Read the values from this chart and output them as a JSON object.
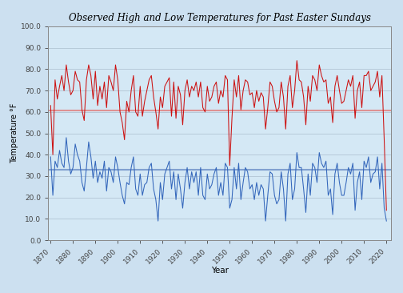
{
  "title": "Observed High and Low Temperatures for Past Easter Sundays",
  "xlabel": "Year",
  "ylabel": "Temperature °F",
  "bg_color": "#cce0f0",
  "plot_bg_color": "#d4e8f5",
  "grid_color": "#aabccc",
  "high_color": "#cc1111",
  "low_color": "#3366bb",
  "avg_high_color": "#e08888",
  "avg_low_color": "#7799cc",
  "xlim": [
    1869,
    2022
  ],
  "ylim": [
    0.0,
    100.0
  ],
  "yticks": [
    0,
    10,
    20,
    30,
    40,
    50,
    60,
    70,
    80,
    90,
    100
  ],
  "xticks": [
    1870,
    1880,
    1890,
    1900,
    1910,
    1920,
    1930,
    1940,
    1950,
    1960,
    1970,
    1980,
    1990,
    2000,
    2010,
    2020
  ],
  "years": [
    1870,
    1871,
    1872,
    1873,
    1874,
    1875,
    1876,
    1877,
    1878,
    1879,
    1880,
    1881,
    1882,
    1883,
    1884,
    1885,
    1886,
    1887,
    1888,
    1889,
    1890,
    1891,
    1892,
    1893,
    1894,
    1895,
    1896,
    1897,
    1898,
    1899,
    1900,
    1901,
    1902,
    1903,
    1904,
    1905,
    1906,
    1907,
    1908,
    1909,
    1910,
    1911,
    1912,
    1913,
    1914,
    1915,
    1916,
    1917,
    1918,
    1919,
    1920,
    1921,
    1922,
    1923,
    1924,
    1925,
    1926,
    1927,
    1928,
    1929,
    1930,
    1931,
    1932,
    1933,
    1934,
    1935,
    1936,
    1937,
    1938,
    1939,
    1940,
    1941,
    1942,
    1943,
    1944,
    1945,
    1946,
    1947,
    1948,
    1949,
    1950,
    1951,
    1952,
    1953,
    1954,
    1955,
    1956,
    1957,
    1958,
    1959,
    1960,
    1961,
    1962,
    1963,
    1964,
    1965,
    1966,
    1967,
    1968,
    1969,
    1970,
    1971,
    1972,
    1973,
    1974,
    1975,
    1976,
    1977,
    1978,
    1979,
    1980,
    1981,
    1982,
    1983,
    1984,
    1985,
    1986,
    1987,
    1988,
    1989,
    1990,
    1991,
    1992,
    1993,
    1994,
    1995,
    1996,
    1997,
    1998,
    1999,
    2000,
    2001,
    2002,
    2003,
    2004,
    2005,
    2006,
    2007,
    2008,
    2009,
    2010,
    2011,
    2012,
    2013,
    2014,
    2015,
    2016,
    2017,
    2018,
    2019,
    2020
  ],
  "highs": [
    63,
    40,
    75,
    66,
    72,
    77,
    70,
    82,
    74,
    68,
    70,
    79,
    75,
    74,
    61,
    56,
    75,
    82,
    77,
    66,
    79,
    63,
    72,
    66,
    74,
    62,
    77,
    74,
    70,
    82,
    75,
    60,
    55,
    47,
    65,
    60,
    70,
    77,
    60,
    58,
    72,
    58,
    65,
    70,
    75,
    77,
    67,
    60,
    52,
    67,
    62,
    72,
    74,
    76,
    58,
    74,
    57,
    72,
    68,
    54,
    70,
    75,
    67,
    72,
    70,
    74,
    67,
    74,
    62,
    60,
    72,
    65,
    67,
    72,
    74,
    64,
    70,
    67,
    77,
    75,
    35,
    57,
    75,
    67,
    77,
    61,
    70,
    75,
    74,
    68,
    69,
    62,
    70,
    65,
    69,
    67,
    52,
    62,
    74,
    72,
    65,
    60,
    62,
    74,
    67,
    52,
    72,
    77,
    62,
    70,
    84,
    75,
    74,
    67,
    54,
    72,
    65,
    77,
    75,
    70,
    82,
    77,
    74,
    75,
    64,
    67,
    55,
    72,
    77,
    70,
    64,
    65,
    70,
    75,
    72,
    77,
    57,
    70,
    74,
    62,
    77,
    77,
    79,
    70,
    72,
    74,
    79,
    67,
    77,
    47,
    14
  ],
  "lows": [
    39,
    21,
    37,
    34,
    42,
    36,
    34,
    48,
    37,
    31,
    34,
    45,
    40,
    37,
    27,
    23,
    34,
    46,
    39,
    29,
    37,
    27,
    32,
    29,
    37,
    23,
    34,
    32,
    27,
    39,
    34,
    27,
    21,
    17,
    27,
    26,
    34,
    39,
    24,
    21,
    31,
    21,
    26,
    27,
    34,
    36,
    24,
    19,
    9,
    27,
    19,
    31,
    34,
    37,
    24,
    32,
    19,
    31,
    24,
    15,
    27,
    34,
    24,
    32,
    27,
    32,
    21,
    34,
    21,
    19,
    31,
    24,
    26,
    31,
    34,
    21,
    27,
    21,
    36,
    34,
    15,
    19,
    34,
    24,
    36,
    19,
    27,
    34,
    32,
    24,
    26,
    19,
    27,
    21,
    26,
    24,
    9,
    21,
    32,
    31,
    21,
    17,
    19,
    32,
    24,
    9,
    31,
    36,
    19,
    24,
    41,
    34,
    34,
    24,
    13,
    31,
    21,
    36,
    34,
    27,
    41,
    36,
    34,
    37,
    21,
    24,
    12,
    31,
    36,
    27,
    21,
    21,
    27,
    34,
    31,
    36,
    14,
    27,
    32,
    19,
    37,
    34,
    39,
    27,
    31,
    32,
    39,
    24,
    36,
    15,
    9
  ],
  "avg_high": 60.5,
  "avg_low": 33.0
}
